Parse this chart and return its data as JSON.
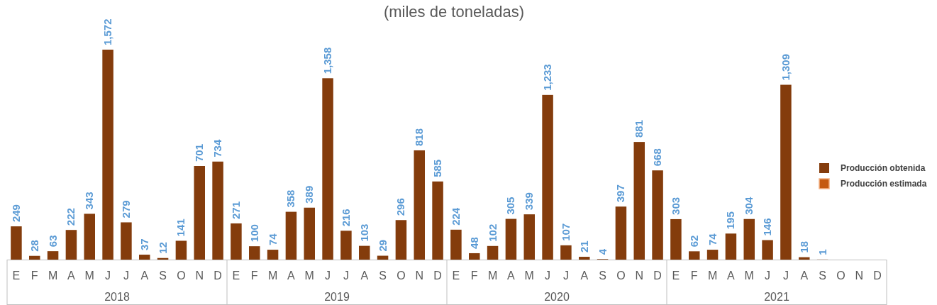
{
  "chart_data": {
    "type": "bar",
    "title": "(miles de toneladas)",
    "categories": [
      "E",
      "F",
      "M",
      "A",
      "M",
      "J",
      "J",
      "A",
      "S",
      "O",
      "N",
      "D",
      "E",
      "F",
      "M",
      "A",
      "M",
      "J",
      "J",
      "A",
      "S",
      "O",
      "N",
      "D",
      "E",
      "F",
      "M",
      "A",
      "M",
      "J",
      "J",
      "A",
      "S",
      "O",
      "N",
      "D",
      "E",
      "F",
      "M",
      "A",
      "M",
      "J",
      "J",
      "A",
      "S",
      "O",
      "N",
      "D"
    ],
    "series": [
      {
        "name": "Producción obtenida",
        "color": "#843c0c",
        "values": [
          249,
          28,
          63,
          222,
          343,
          1572,
          279,
          37,
          12,
          141,
          701,
          734,
          271,
          100,
          74,
          358,
          389,
          1358,
          216,
          103,
          29,
          296,
          818,
          585,
          224,
          48,
          102,
          305,
          339,
          1233,
          107,
          21,
          4,
          397,
          881,
          668,
          303,
          62,
          74,
          195,
          304,
          146,
          1309,
          18,
          1,
          null,
          null,
          null
        ],
        "value_labels": [
          "249",
          "28",
          "63",
          "222",
          "343",
          "1,572",
          "279",
          "37",
          "12",
          "141",
          "701",
          "734",
          "271",
          "100",
          "74",
          "358",
          "389",
          "1,358",
          "216",
          "103",
          "29",
          "296",
          "818",
          "585",
          "224",
          "48",
          "102",
          "305",
          "339",
          "1,233",
          "107",
          "21",
          "4",
          "397",
          "881",
          "668",
          "303",
          "62",
          "74",
          "195",
          "304",
          "146",
          "1,309",
          "18",
          "1",
          null,
          null,
          null
        ]
      },
      {
        "name": "Producción estimada",
        "color": "#c55a11",
        "values": [
          null,
          null,
          null,
          null,
          null,
          null,
          null,
          null,
          null,
          null,
          null,
          null,
          null,
          null,
          null,
          null,
          null,
          null,
          null,
          null,
          null,
          null,
          null,
          null,
          null,
          null,
          null,
          null,
          null,
          null,
          null,
          null,
          null,
          null,
          null,
          null,
          null,
          null,
          null,
          null,
          null,
          null,
          null,
          null,
          null,
          null,
          null,
          null
        ]
      }
    ],
    "annotations": [
      "2018",
      "2019",
      "2020",
      "2021"
    ],
    "legend": "right"
  }
}
